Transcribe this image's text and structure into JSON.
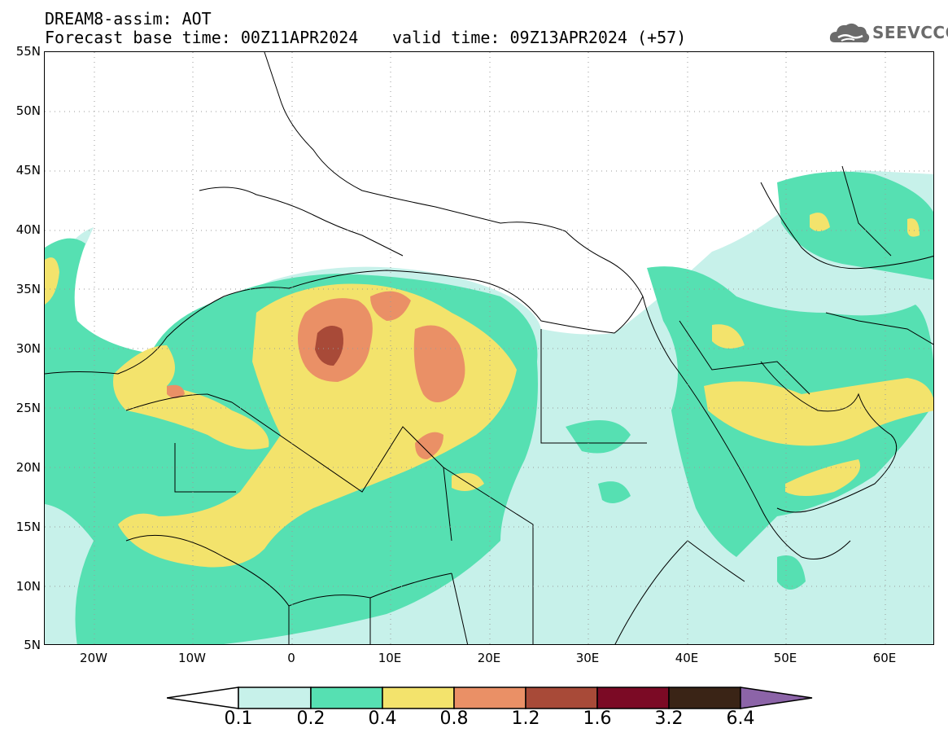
{
  "header": {
    "line1": "DREAM8-assim: AOT",
    "line2_left": "Forecast base time: 00Z11APR2024",
    "line2_right": "valid time: 09Z13APR2024 (+57)"
  },
  "logo": {
    "text": "SEEVCCC",
    "icon": "cloud-icon"
  },
  "map": {
    "lat_labels": [
      "55N",
      "50N",
      "45N",
      "40N",
      "35N",
      "30N",
      "25N",
      "20N",
      "15N",
      "10N",
      "5N"
    ],
    "lon_labels": [
      "20W",
      "10W",
      "0",
      "10E",
      "20E",
      "30E",
      "40E",
      "50E",
      "60E"
    ],
    "grid": true,
    "lon_range": [
      -25,
      65
    ],
    "lat_range": [
      5,
      55
    ]
  },
  "colorbar": {
    "labels": [
      "0.1",
      "0.2",
      "0.4",
      "0.8",
      "1.2",
      "1.6",
      "3.2",
      "6.4"
    ],
    "colors": [
      "#ffffff",
      "#c7f1ea",
      "#56e0b2",
      "#f3e36c",
      "#ea9066",
      "#a84a38",
      "#7b0a25",
      "#3a2416",
      "#8c64a8"
    ]
  }
}
